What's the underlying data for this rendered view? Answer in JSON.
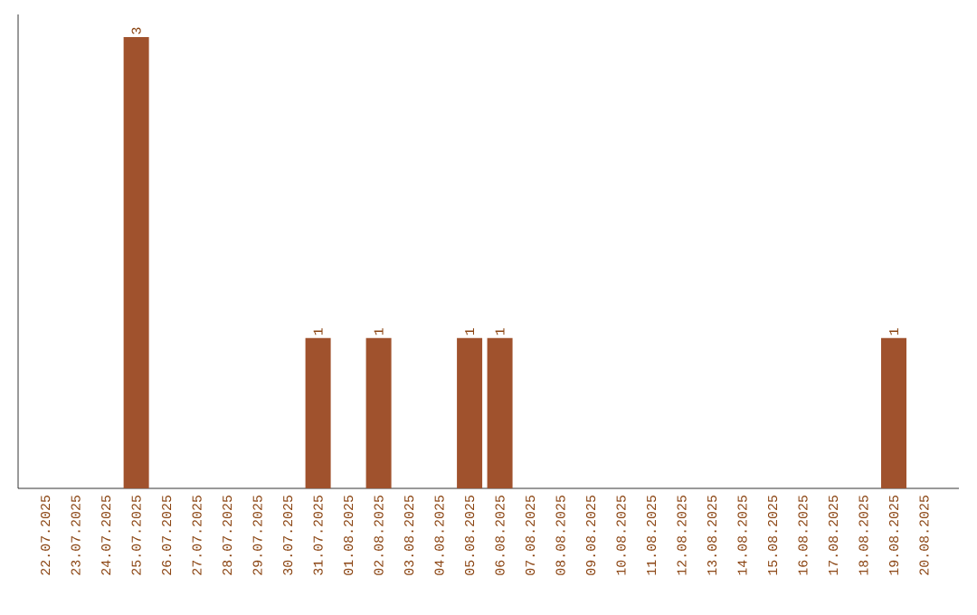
{
  "chart_data": {
    "type": "bar",
    "color": "#a0522d",
    "tick_labels": "x",
    "categories": [
      "22.07.2025",
      "23.07.2025",
      "24.07.2025",
      "25.07.2025",
      "26.07.2025",
      "27.07.2025",
      "28.07.2025",
      "29.07.2025",
      "30.07.2025",
      "31.07.2025",
      "01.08.2025",
      "02.08.2025",
      "03.08.2025",
      "04.08.2025",
      "05.08.2025",
      "06.08.2025",
      "07.08.2025",
      "08.08.2025",
      "09.08.2025",
      "10.08.2025",
      "11.08.2025",
      "12.08.2025",
      "13.08.2025",
      "14.08.2025",
      "15.08.2025",
      "16.08.2025",
      "17.08.2025",
      "18.08.2025",
      "19.08.2025",
      "20.08.2025"
    ],
    "values": [
      0,
      0,
      0,
      3,
      0,
      0,
      0,
      0,
      0,
      1,
      0,
      1,
      0,
      0,
      1,
      1,
      0,
      0,
      0,
      0,
      0,
      0,
      0,
      0,
      0,
      0,
      0,
      0,
      1,
      0
    ],
    "value_labels": [
      null,
      null,
      null,
      "3",
      null,
      null,
      null,
      null,
      null,
      "1",
      null,
      "1",
      null,
      null,
      "1",
      "1",
      null,
      null,
      null,
      null,
      null,
      null,
      null,
      null,
      null,
      null,
      null,
      null,
      "1",
      null
    ]
  }
}
